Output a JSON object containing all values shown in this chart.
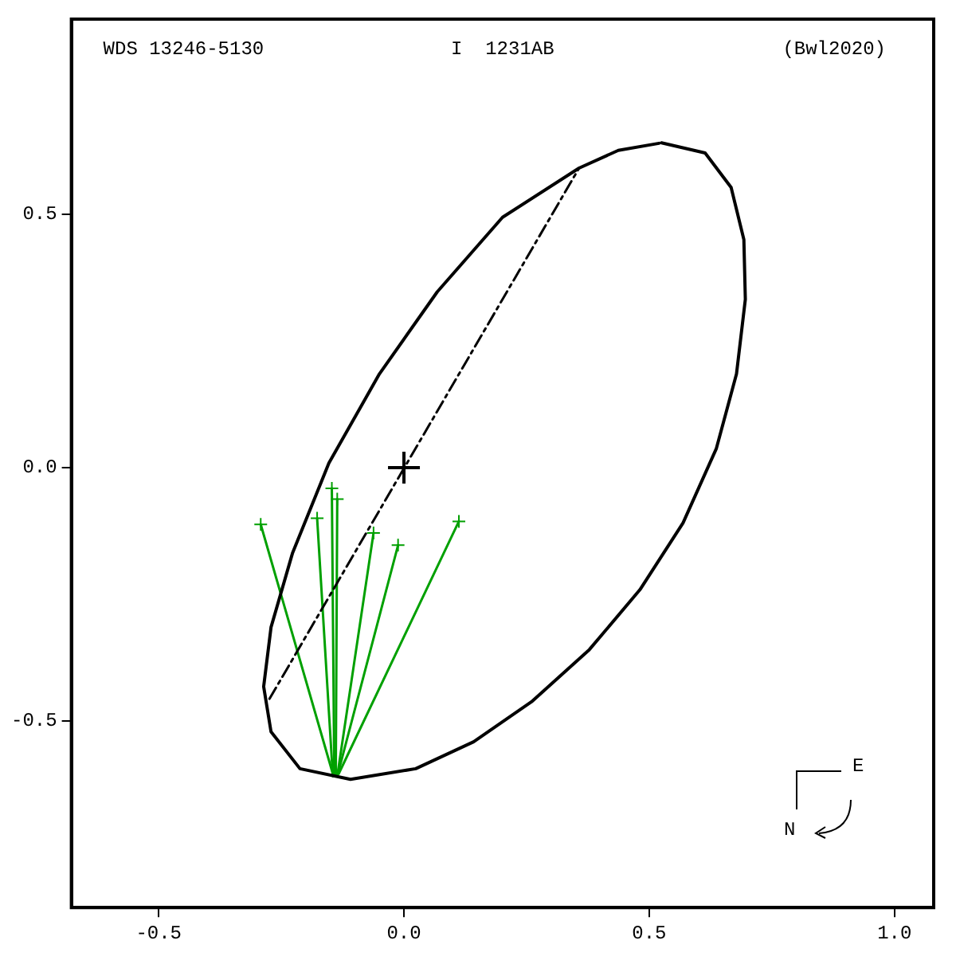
{
  "chart_data": {
    "type": "line",
    "title": "WDS 13246-5130",
    "subtitle": "I  1231AB",
    "annotations": [
      "(Bwl2020)",
      "E",
      "N"
    ],
    "xlim": [
      -0.678,
      1.08
    ],
    "ylim": [
      -0.868,
      0.885
    ],
    "xticks": [
      {
        "value": -0.5,
        "label": "-0.5"
      },
      {
        "value": 0,
        "label": "0.0"
      },
      {
        "value": 0.5,
        "label": "0.5"
      },
      {
        "value": 1,
        "label": "1.0"
      }
    ],
    "yticks": [
      0.5,
      {
        "value": 0,
        "label": "0.0"
      },
      -0.5
    ],
    "grid": false,
    "legend": false,
    "series": [
      {
        "color": "#000000",
        "marker": "none",
        "line_style": "solid",
        "x": [
          0.525,
          0.614,
          0.667,
          0.693,
          0.696,
          0.678,
          0.637,
          0.569,
          0.481,
          0.378,
          0.26,
          0.142,
          0.024,
          -0.109,
          -0.212,
          -0.271,
          -0.286,
          -0.271,
          -0.227,
          -0.153,
          -0.05,
          0.068,
          0.201,
          0.357,
          0.437,
          0.52
        ],
        "values": [
          0.641,
          0.621,
          0.553,
          0.45,
          0.332,
          0.185,
          0.038,
          -0.109,
          -0.241,
          -0.359,
          -0.462,
          -0.541,
          -0.594,
          -0.615,
          -0.594,
          -0.521,
          -0.432,
          -0.315,
          -0.168,
          0.009,
          0.185,
          0.347,
          0.494,
          0.591,
          0.626,
          0.64
        ]
      },
      {
        "color": "#000000",
        "marker": "none",
        "line_style": "dashed",
        "x": [
          -0.274,
          0.357
        ],
        "values": [
          -0.456,
          0.591
        ]
      },
      {
        "type": "scatter",
        "color": "#000000",
        "marker": "cross",
        "x": [
          0
        ],
        "values": [
          0
        ]
      },
      {
        "type": "line",
        "color": "#00a000",
        "marker": "none",
        "line_style": "solid",
        "x": [
          -0.292,
          -0.145
        ],
        "values": [
          -0.112,
          -0.604
        ]
      },
      {
        "type": "line",
        "color": "#00a000",
        "marker": "none",
        "line_style": "solid",
        "x": [
          -0.177,
          -0.145
        ],
        "values": [
          -0.1,
          -0.609
        ]
      },
      {
        "type": "line",
        "color": "#00a000",
        "marker": "none",
        "line_style": "solid",
        "x": [
          -0.147,
          -0.142
        ],
        "values": [
          -0.041,
          -0.609
        ]
      },
      {
        "type": "line",
        "color": "#00a000",
        "marker": "none",
        "line_style": "solid",
        "x": [
          -0.136,
          -0.139
        ],
        "values": [
          -0.062,
          -0.609
        ]
      },
      {
        "type": "line",
        "color": "#00a000",
        "marker": "none",
        "line_style": "solid",
        "x": [
          -0.062,
          -0.136
        ],
        "values": [
          -0.129,
          -0.609
        ]
      },
      {
        "type": "line",
        "color": "#00a000",
        "marker": "none",
        "line_style": "solid",
        "x": [
          -0.012,
          -0.136
        ],
        "values": [
          -0.153,
          -0.609
        ]
      },
      {
        "type": "line",
        "color": "#00a000",
        "marker": "none",
        "line_style": "solid",
        "x": [
          0.112,
          -0.133
        ],
        "values": [
          -0.106,
          -0.604
        ]
      },
      {
        "type": "scatter",
        "color": "#00a000",
        "marker": "cross",
        "x": [
          -0.292,
          -0.177,
          -0.147,
          -0.136,
          -0.062,
          -0.012,
          0.112
        ],
        "values": [
          -0.112,
          -0.1,
          -0.041,
          -0.062,
          -0.129,
          -0.153,
          -0.106
        ]
      }
    ]
  }
}
